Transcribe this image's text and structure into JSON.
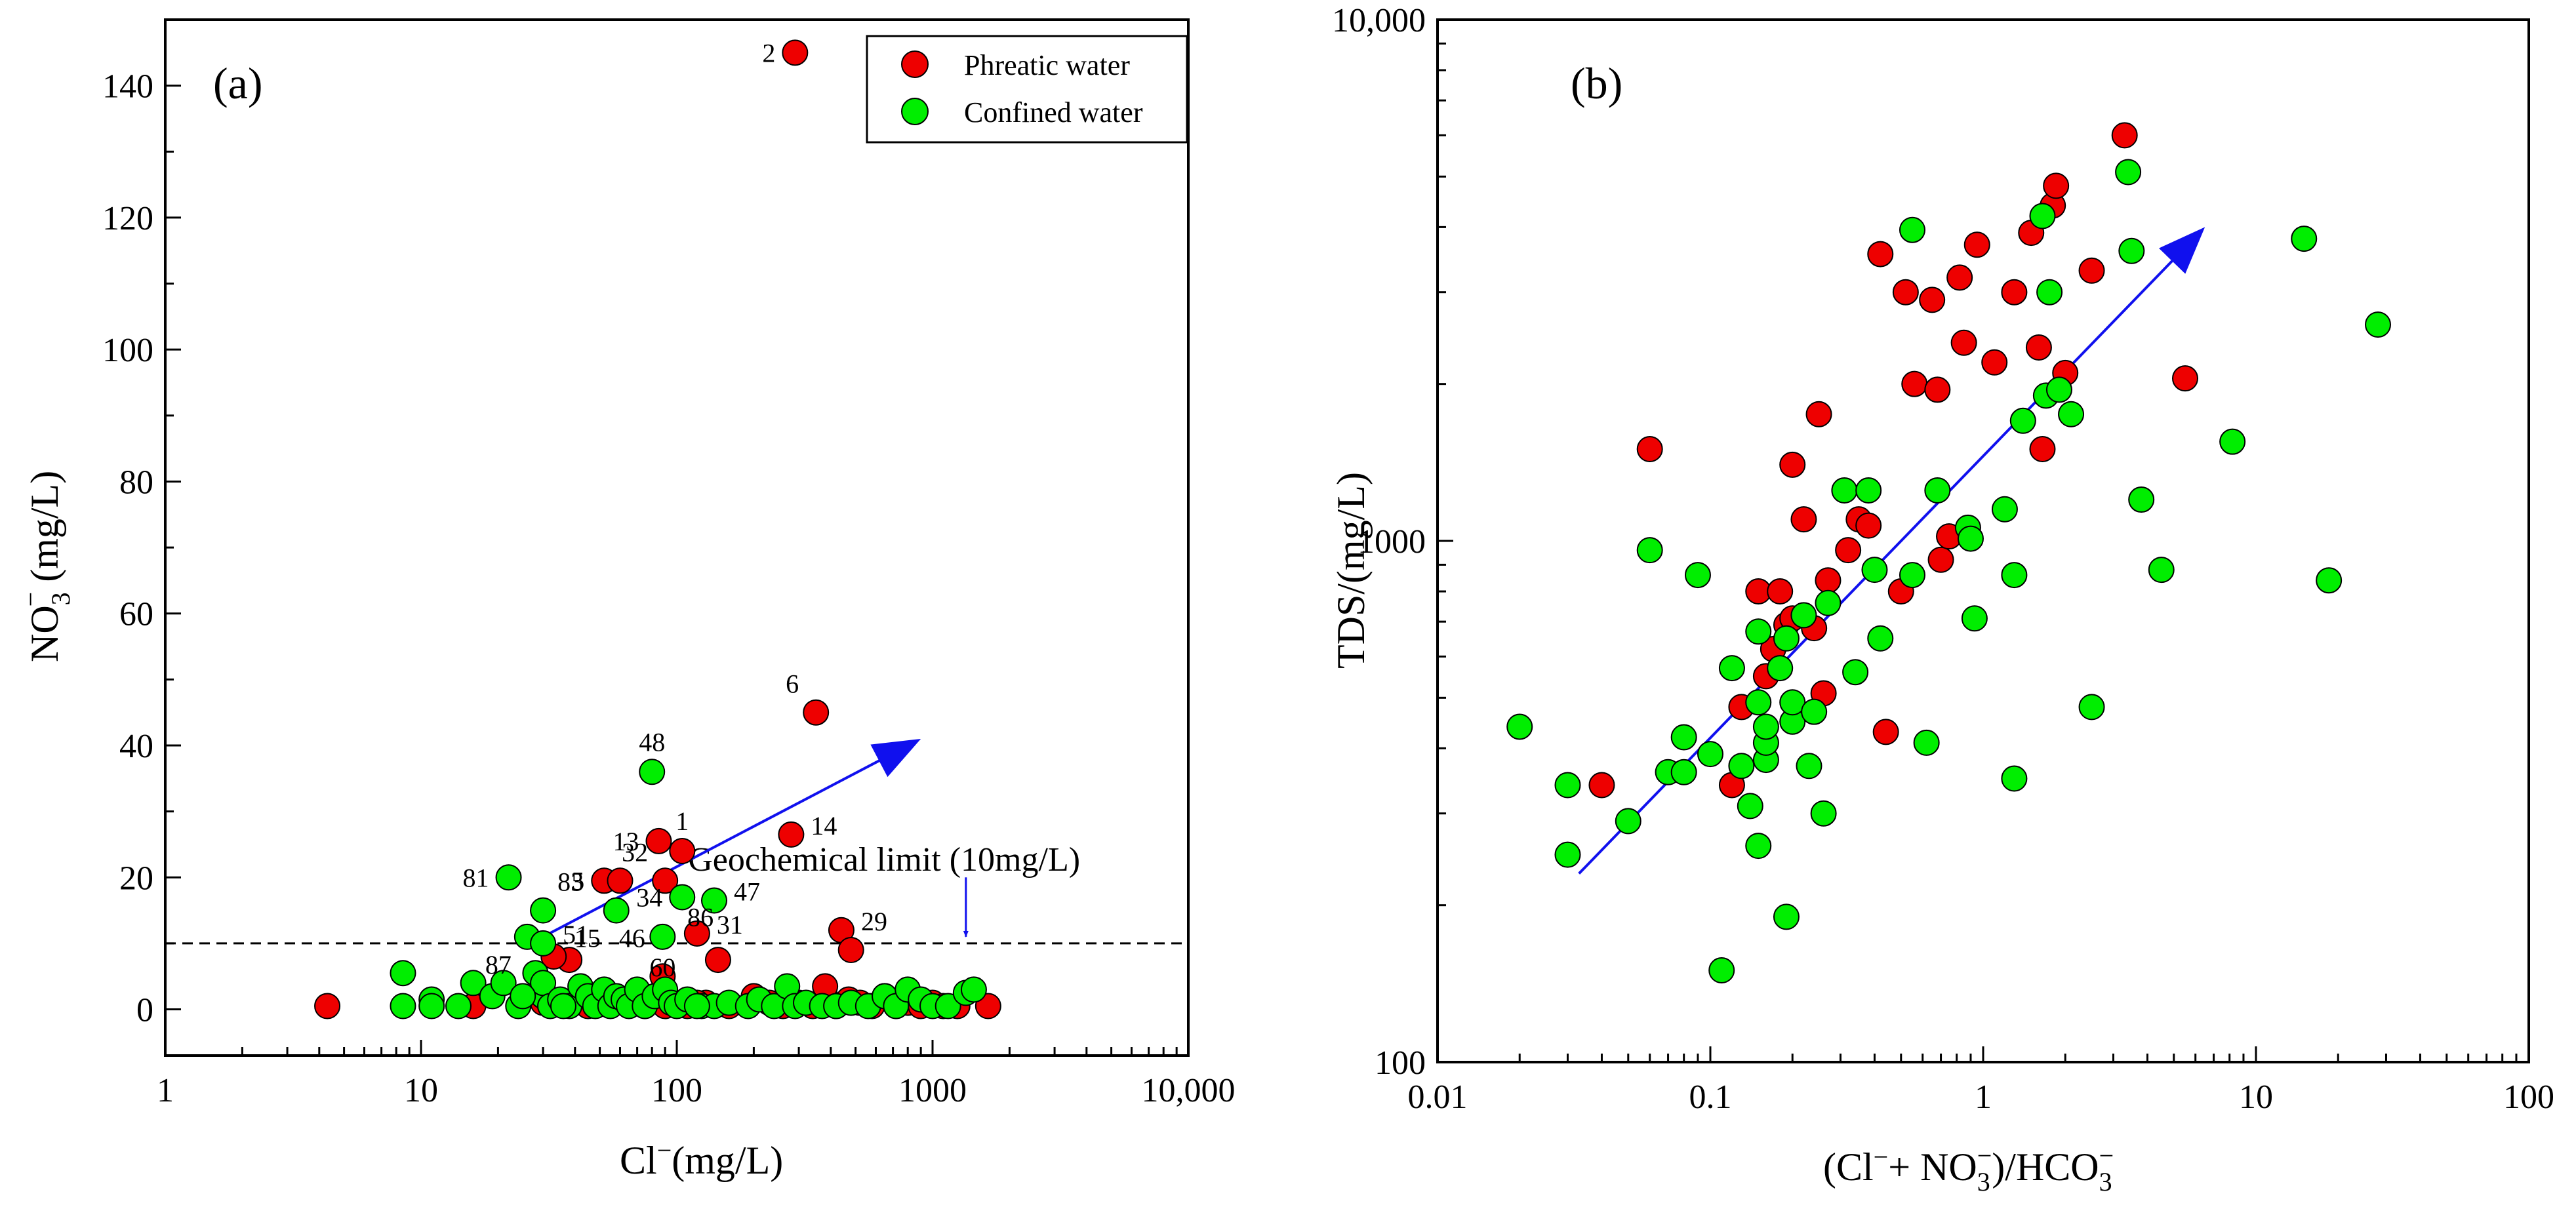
{
  "colors": {
    "phreatic": "#ee0000",
    "confined": "#00ee00",
    "arrow": "#1010ee",
    "axis": "#000000"
  },
  "legend": [
    {
      "key": "phreatic",
      "label": "Phreatic water"
    },
    {
      "key": "confined",
      "label": "Confined water"
    }
  ],
  "chart_data": [
    {
      "panel": "(a)",
      "type": "scatter",
      "xscale": "log",
      "xlim": [
        1,
        10000
      ],
      "xticks": [
        1,
        10,
        100,
        1000,
        10000
      ],
      "xtick_labels": [
        "1",
        "10",
        "100",
        "1000",
        "10,000"
      ],
      "yscale": "linear",
      "ylim": [
        -7,
        150
      ],
      "yticks": [
        0,
        20,
        40,
        60,
        80,
        100,
        120,
        140
      ],
      "ytick_labels": [
        "0",
        "20",
        "40",
        "60",
        "80",
        "100",
        "120",
        "140"
      ],
      "xlabel": "Cl",
      "xlabel_sup": "−",
      "xlabel_unit": "(mg/L)",
      "ylabel": "NO",
      "ylabel_sub": "3",
      "ylabel_sup": "−",
      "ylabel_unit": " (mg/L)",
      "legend_position": "top-right",
      "reference_line": {
        "y": 10,
        "label": "Geochemical limit (10mg/L)",
        "style": "dashed"
      },
      "trend_arrow": {
        "from": [
          30,
          11
        ],
        "to": [
          900,
          41
        ]
      },
      "limit_arrow": {
        "x": 1350,
        "from_y": 20,
        "to_y": 11
      },
      "series": [
        {
          "name": "Phreatic water",
          "key": "phreatic",
          "points": [
            [
              4.3,
              0.5
            ],
            [
              16,
              0.5
            ],
            [
              30,
              1
            ],
            [
              45,
              0.5
            ],
            [
              60,
              1.5
            ],
            [
              75,
              0.5
            ],
            [
              90,
              0.5
            ],
            [
              110,
              0.5
            ],
            [
              130,
              1
            ],
            [
              160,
              0.5
            ],
            [
              200,
              2
            ],
            [
              230,
              1
            ],
            [
              260,
              0.5
            ],
            [
              300,
              1
            ],
            [
              340,
              0.5
            ],
            [
              380,
              2
            ],
            [
              420,
              0.5
            ],
            [
              470,
              1.5
            ],
            [
              520,
              1
            ],
            [
              580,
              0.5
            ],
            [
              650,
              2
            ],
            [
              720,
              0.5
            ],
            [
              800,
              1
            ],
            [
              900,
              0.5
            ],
            [
              1000,
              1
            ],
            [
              1100,
              0.5
            ],
            [
              1250,
              0.5
            ],
            [
              1650,
              0.5
            ],
            [
              70,
              2
            ],
            [
              120,
              1
            ],
            [
              38,
              7.5
            ],
            [
              145,
              7.5
            ],
            [
              88,
              5
            ],
            [
              33,
              8
            ],
            [
              290,
              145
            ],
            [
              350,
              45
            ],
            [
              280,
              26.5
            ],
            [
              85,
              25.5
            ],
            [
              105,
              24
            ],
            [
              52,
              19.5
            ],
            [
              60,
              19.5
            ],
            [
              90,
              19.5
            ],
            [
              120,
              11.5
            ],
            [
              440,
              12
            ],
            [
              480,
              9
            ],
            [
              380,
              3.5
            ]
          ],
          "labels": [
            {
              "text": "2",
              "x": 290,
              "y": 145,
              "pos": "left"
            },
            {
              "text": "6",
              "x": 350,
              "y": 45,
              "pos": "upleft"
            },
            {
              "text": "14",
              "x": 280,
              "y": 26.5,
              "pos": "right"
            },
            {
              "text": "13",
              "x": 85,
              "y": 25.5,
              "pos": "left"
            },
            {
              "text": "1",
              "x": 105,
              "y": 24,
              "pos": "up"
            },
            {
              "text": "5",
              "x": 52,
              "y": 19.5,
              "pos": "left"
            },
            {
              "text": "32",
              "x": 90,
              "y": 19.5,
              "pos": "upleft"
            },
            {
              "text": "29",
              "x": 440,
              "y": 12,
              "pos": "right"
            },
            {
              "text": "31",
              "x": 120,
              "y": 11.5,
              "pos": "right"
            },
            {
              "text": "86",
              "x": 110,
              "y": 14,
              "pos": "none"
            }
          ]
        },
        {
          "name": "Confined water",
          "key": "confined",
          "points": [
            [
              8.5,
              5.5
            ],
            [
              8.5,
              0.5
            ],
            [
              11,
              1.5
            ],
            [
              11,
              0.5
            ],
            [
              14,
              0.5
            ],
            [
              16,
              4
            ],
            [
              19,
              2
            ],
            [
              21,
              4
            ],
            [
              24,
              0.5
            ],
            [
              26,
              11
            ],
            [
              28,
              5.5
            ],
            [
              30,
              2
            ],
            [
              30,
              4
            ],
            [
              32,
              0.5
            ],
            [
              35,
              1.5
            ],
            [
              38,
              0.5
            ],
            [
              42,
              3.5
            ],
            [
              45,
              2
            ],
            [
              48,
              0.5
            ],
            [
              52,
              3
            ],
            [
              55,
              0.5
            ],
            [
              58,
              2
            ],
            [
              62,
              1.5
            ],
            [
              65,
              0.5
            ],
            [
              70,
              3
            ],
            [
              75,
              0.5
            ],
            [
              82,
              2
            ],
            [
              90,
              3
            ],
            [
              95,
              1
            ],
            [
              100,
              0.5
            ],
            [
              110,
              1.5
            ],
            [
              125,
              0.5
            ],
            [
              140,
              0.5
            ],
            [
              160,
              1
            ],
            [
              190,
              0.5
            ],
            [
              210,
              1.5
            ],
            [
              240,
              0.5
            ],
            [
              270,
              3.5
            ],
            [
              290,
              0.5
            ],
            [
              320,
              1
            ],
            [
              370,
              0.5
            ],
            [
              420,
              0.5
            ],
            [
              480,
              1
            ],
            [
              560,
              0.5
            ],
            [
              650,
              2
            ],
            [
              720,
              0.5
            ],
            [
              800,
              3
            ],
            [
              900,
              1.5
            ],
            [
              1000,
              0.5
            ],
            [
              1150,
              0.5
            ],
            [
              1350,
              2.5
            ],
            [
              1450,
              3
            ],
            [
              22,
              20
            ],
            [
              30,
              15
            ],
            [
              58,
              15
            ],
            [
              30,
              10
            ],
            [
              80,
              36
            ],
            [
              105,
              17
            ],
            [
              140,
              16.5
            ],
            [
              88,
              11
            ],
            [
              25,
              2
            ],
            [
              36,
              0.5
            ],
            [
              120,
              0.5
            ]
          ],
          "labels": [
            {
              "text": "48",
              "x": 80,
              "y": 36,
              "pos": "up"
            },
            {
              "text": "81",
              "x": 22,
              "y": 20,
              "pos": "left"
            },
            {
              "text": "83",
              "x": 30,
              "y": 15,
              "pos": "upright"
            },
            {
              "text": "34",
              "x": 105,
              "y": 17,
              "pos": "left"
            },
            {
              "text": "47",
              "x": 140,
              "y": 16.5,
              "pos": "right"
            },
            {
              "text": "15",
              "x": 58,
              "y": 15,
              "pos": "downleft"
            },
            {
              "text": "46",
              "x": 58,
              "y": 15,
              "pos": "downright"
            },
            {
              "text": "60",
              "x": 88,
              "y": 11,
              "pos": "down"
            },
            {
              "text": "87",
              "x": 26,
              "y": 11,
              "pos": "downleft"
            },
            {
              "text": "51",
              "x": 30,
              "y": 10,
              "pos": "right"
            }
          ]
        }
      ]
    },
    {
      "panel": "(b)",
      "type": "scatter",
      "xscale": "log",
      "xlim": [
        0.01,
        100
      ],
      "xticks": [
        0.01,
        0.1,
        1,
        10,
        100
      ],
      "xtick_labels": [
        "0.01",
        "0.1",
        "1",
        "10",
        "100"
      ],
      "yscale": "log",
      "ylim": [
        100,
        10000
      ],
      "yticks": [
        100,
        1000,
        10000
      ],
      "ytick_labels": [
        "100",
        "1000",
        "10,000"
      ],
      "xlabel": "(Cl",
      "xlabel_sup1": "−",
      "xlabel_mid": "+ NO",
      "xlabel_sub": "3",
      "xlabel_sup2": "−",
      "xlabel_tail": ")/HCO",
      "xlabel_sub2": "3",
      "xlabel_sup3": "−",
      "ylabel": "TDS/(mg/L)",
      "trend_arrow": {
        "from": [
          0.033,
          230
        ],
        "to": [
          6.5,
          4000
        ]
      },
      "series": [
        {
          "name": "Phreatic water",
          "key": "phreatic",
          "points": [
            [
              0.04,
              340
            ],
            [
              0.06,
              1500
            ],
            [
              0.12,
              340
            ],
            [
              0.13,
              480
            ],
            [
              0.15,
              800
            ],
            [
              0.16,
              550
            ],
            [
              0.17,
              620
            ],
            [
              0.18,
              800
            ],
            [
              0.19,
              690
            ],
            [
              0.2,
              710
            ],
            [
              0.2,
              1400
            ],
            [
              0.22,
              1100
            ],
            [
              0.24,
              680
            ],
            [
              0.25,
              1750
            ],
            [
              0.26,
              510
            ],
            [
              0.27,
              840
            ],
            [
              0.32,
              960
            ],
            [
              0.35,
              1100
            ],
            [
              0.38,
              1070
            ],
            [
              0.42,
              3550
            ],
            [
              0.44,
              430
            ],
            [
              0.5,
              800
            ],
            [
              0.52,
              3000
            ],
            [
              0.56,
              2000
            ],
            [
              0.65,
              2900
            ],
            [
              0.68,
              1950
            ],
            [
              0.7,
              920
            ],
            [
              0.75,
              1020
            ],
            [
              0.82,
              3200
            ],
            [
              0.85,
              2400
            ],
            [
              0.95,
              3700
            ],
            [
              1.1,
              2200
            ],
            [
              1.3,
              3000
            ],
            [
              1.5,
              3900
            ],
            [
              1.6,
              2350
            ],
            [
              1.65,
              1500
            ],
            [
              1.8,
              4400
            ],
            [
              1.85,
              4800
            ],
            [
              2.0,
              2100
            ],
            [
              2.5,
              3300
            ],
            [
              3.3,
              6000
            ],
            [
              5.5,
              2050
            ]
          ]
        },
        {
          "name": "Confined water",
          "key": "confined",
          "points": [
            [
              0.02,
              440
            ],
            [
              0.03,
              250
            ],
            [
              0.03,
              340
            ],
            [
              0.05,
              290
            ],
            [
              0.06,
              960
            ],
            [
              0.07,
              360
            ],
            [
              0.08,
              360
            ],
            [
              0.08,
              420
            ],
            [
              0.09,
              860
            ],
            [
              0.1,
              390
            ],
            [
              0.11,
              150
            ],
            [
              0.12,
              570
            ],
            [
              0.13,
              370
            ],
            [
              0.14,
              310
            ],
            [
              0.15,
              260
            ],
            [
              0.15,
              490
            ],
            [
              0.15,
              670
            ],
            [
              0.16,
              380
            ],
            [
              0.16,
              410
            ],
            [
              0.16,
              440
            ],
            [
              0.18,
              570
            ],
            [
              0.19,
              650
            ],
            [
              0.19,
              190
            ],
            [
              0.2,
              450
            ],
            [
              0.2,
              490
            ],
            [
              0.22,
              720
            ],
            [
              0.23,
              370
            ],
            [
              0.24,
              470
            ],
            [
              0.26,
              300
            ],
            [
              0.27,
              760
            ],
            [
              0.31,
              1250
            ],
            [
              0.34,
              560
            ],
            [
              0.38,
              1250
            ],
            [
              0.4,
              880
            ],
            [
              0.42,
              650
            ],
            [
              0.55,
              860
            ],
            [
              0.55,
              3950
            ],
            [
              0.62,
              410
            ],
            [
              0.68,
              1250
            ],
            [
              0.88,
              1060
            ],
            [
              0.9,
              1010
            ],
            [
              0.93,
              710
            ],
            [
              1.2,
              1150
            ],
            [
              1.3,
              860
            ],
            [
              1.3,
              350
            ],
            [
              1.4,
              1700
            ],
            [
              1.65,
              4200
            ],
            [
              1.7,
              1900
            ],
            [
              1.75,
              3000
            ],
            [
              1.9,
              1950
            ],
            [
              2.1,
              1750
            ],
            [
              2.5,
              480
            ],
            [
              3.4,
              5100
            ],
            [
              3.5,
              3600
            ],
            [
              3.8,
              1200
            ],
            [
              4.5,
              880
            ],
            [
              8.2,
              1550
            ],
            [
              15,
              3800
            ],
            [
              18.5,
              840
            ],
            [
              28,
              2600
            ]
          ]
        }
      ]
    }
  ]
}
